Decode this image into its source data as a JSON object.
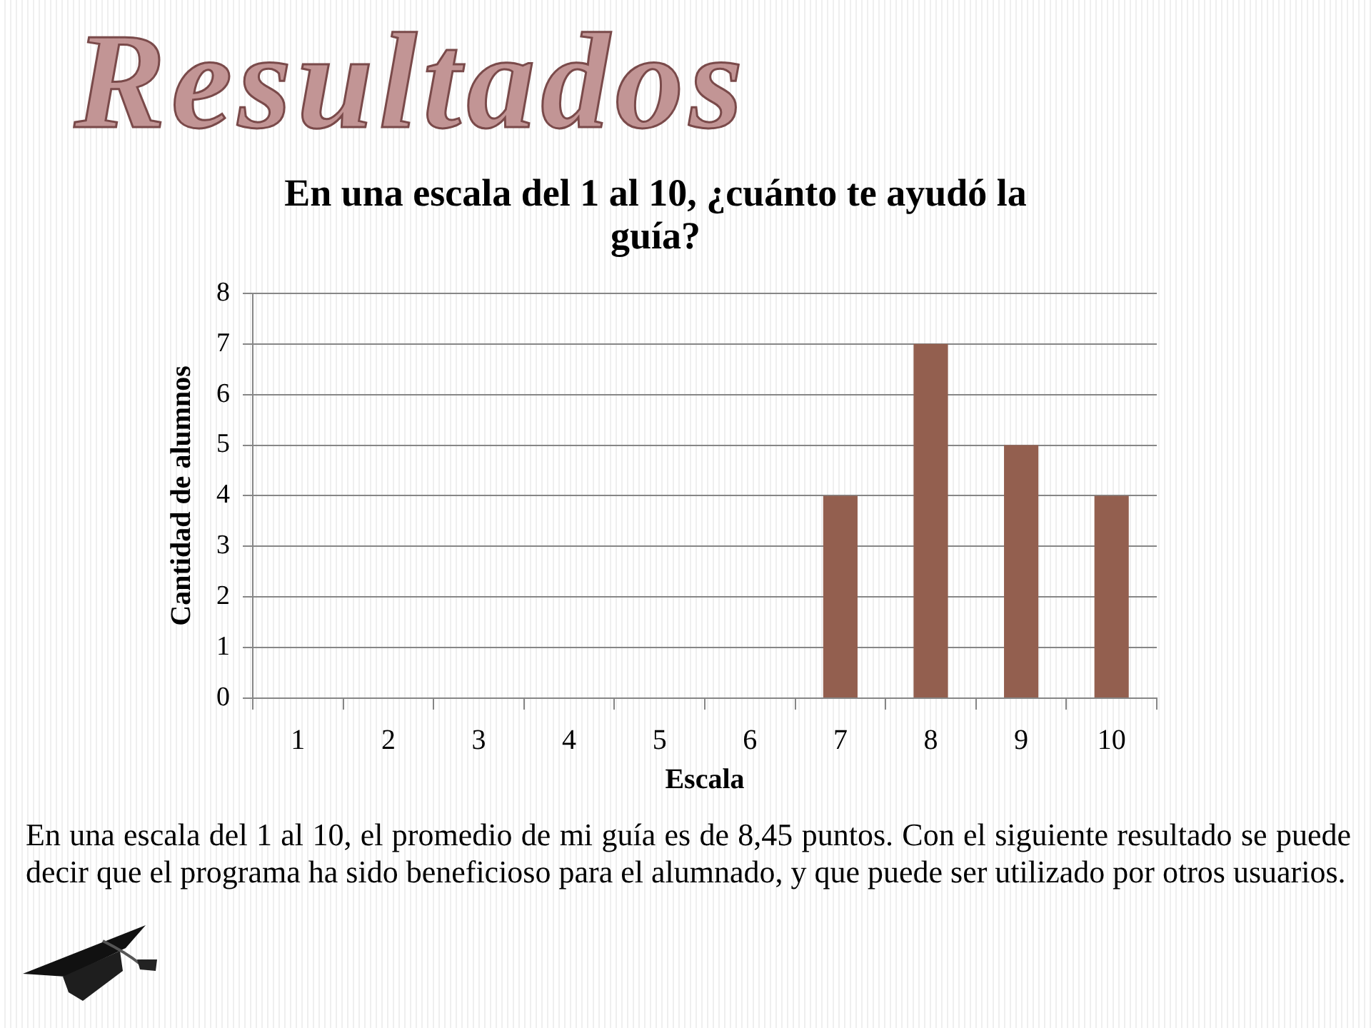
{
  "chart_data": {
    "type": "bar",
    "title": "Resultados",
    "subtitle": "En una escala del 1 al 10, ¿cuánto te ayudó la guía?",
    "xlabel": "Escala",
    "ylabel": "Cantidad de alumnos",
    "categories": [
      "1",
      "2",
      "3",
      "4",
      "5",
      "6",
      "7",
      "8",
      "9",
      "10"
    ],
    "values": [
      0,
      0,
      0,
      0,
      0,
      0,
      4,
      7,
      5,
      4
    ],
    "color": "#935f4f",
    "ylim": [
      0,
      8
    ],
    "yticks": [
      0,
      1,
      2,
      3,
      4,
      5,
      6,
      7,
      8
    ],
    "grid": "y",
    "annotations": [
      "En una escala del 1 al 10, el promedio de mi guía es de 8,45 puntos. Con el siguiente resultado se puede decir que el programa ha sido beneficioso para el alumnado, y que puede ser utilizado por otros usuarios."
    ]
  }
}
